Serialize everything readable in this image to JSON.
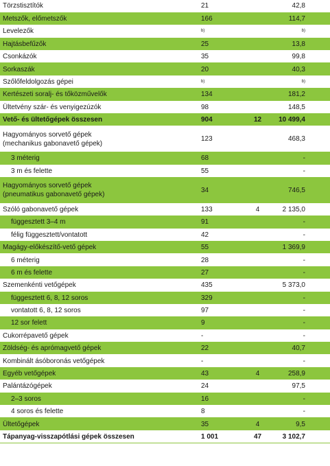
{
  "rows": [
    {
      "name": "Törzstisztítók",
      "count": "21",
      "mid": "",
      "value": "42,8",
      "style": "w"
    },
    {
      "name": "Metszők, előmetszők",
      "count": "166",
      "mid": "",
      "value": "114,7",
      "style": "g"
    },
    {
      "name": "Levelezők",
      "count": "b)",
      "mid": "",
      "value": "b)",
      "style": "w",
      "sup": true
    },
    {
      "name": "Hajtásbefűzők",
      "count": "25",
      "mid": "",
      "value": "13,8",
      "style": "g"
    },
    {
      "name": "Csonkázók",
      "count": "35",
      "mid": "",
      "value": "99,8",
      "style": "w"
    },
    {
      "name": "Sorkaszák",
      "count": "20",
      "mid": "",
      "value": "40,3",
      "style": "g"
    },
    {
      "name": "Szőlőfeldolgozás gépei",
      "count": "b)",
      "mid": "",
      "value": "b)",
      "style": "w",
      "sup": true
    },
    {
      "name": "Kertészeti soralj- és tőközművelők",
      "count": "134",
      "mid": "",
      "value": "181,2",
      "style": "g"
    },
    {
      "name": "Ültetvény szár- és venyigezúzók",
      "count": "98",
      "mid": "",
      "value": "148,5",
      "style": "w"
    },
    {
      "name": "Vető- és ültetőgépek összesen",
      "count": "904",
      "mid": "12",
      "value": "10 499,4",
      "style": "g",
      "bold": true
    },
    {
      "name": "Hagyományos sorvető gépek\n(mechanikus gabonavető gépek)",
      "count": "123",
      "mid": "",
      "value": "468,3",
      "style": "w",
      "tall": true
    },
    {
      "name": "3 méterig",
      "count": "68",
      "mid": "",
      "value": "-",
      "style": "g",
      "indent": true
    },
    {
      "name": "3 m és felette",
      "count": "55",
      "mid": "",
      "value": "-",
      "style": "w",
      "indent": true
    },
    {
      "name": "Hagyományos sorvető gépek\n(pneumatikus gabonavető gépek)",
      "count": "34",
      "mid": "",
      "value": "746,5",
      "style": "g",
      "tall": true
    },
    {
      "name": "Szóló gabonavető gépek",
      "count": "133",
      "mid": "4",
      "value": "2 135,0",
      "style": "w"
    },
    {
      "name": "függesztett 3–4 m",
      "count": "91",
      "mid": "",
      "value": "-",
      "style": "g",
      "indent": true
    },
    {
      "name": "félig függesztett/vontatott",
      "count": "42",
      "mid": "",
      "value": "-",
      "style": "w",
      "indent": true
    },
    {
      "name": "Magágy-előkészítő-vető gépek",
      "count": "55",
      "mid": "",
      "value": "1 369,9",
      "style": "g"
    },
    {
      "name": "6 méterig",
      "count": "28",
      "mid": "",
      "value": "-",
      "style": "w",
      "indent": true
    },
    {
      "name": "6 m és felette",
      "count": "27",
      "mid": "",
      "value": "-",
      "style": "g",
      "indent": true
    },
    {
      "name": "Szemenkénti vetőgépek",
      "count": "435",
      "mid": "",
      "value": "5 373,0",
      "style": "w"
    },
    {
      "name": "függesztett 6, 8, 12 soros",
      "count": "329",
      "mid": "",
      "value": "-",
      "style": "g",
      "indent": true
    },
    {
      "name": "vontatott 6, 8, 12 soros",
      "count": "97",
      "mid": "",
      "value": "-",
      "style": "w",
      "indent": true
    },
    {
      "name": "12 sor felett",
      "count": "9",
      "mid": "",
      "value": "-",
      "style": "g",
      "indent": true
    },
    {
      "name": "Cukorrépavető gépek",
      "count": "-",
      "mid": "",
      "value": "-",
      "style": "w"
    },
    {
      "name": "Zöldség- és apró​magvető gépek",
      "count": "22",
      "mid": "",
      "value": "40,7",
      "style": "g"
    },
    {
      "name": "Kombinált ásóboronás vetőgépek",
      "count": "-",
      "mid": "",
      "value": "-",
      "style": "w"
    },
    {
      "name": "Egyéb vetőgépek",
      "count": "43",
      "mid": "4",
      "value": "258,9",
      "style": "g"
    },
    {
      "name": "Palántázógépek",
      "count": "24",
      "mid": "",
      "value": "97,5",
      "style": "w"
    },
    {
      "name": "2–3 soros",
      "count": "16",
      "mid": "",
      "value": "-",
      "style": "g",
      "indent": true
    },
    {
      "name": "4 soros és felette",
      "count": "8",
      "mid": "",
      "value": "-",
      "style": "w",
      "indent": true
    },
    {
      "name": "Ültetőgépek",
      "count": "35",
      "mid": "4",
      "value": "9,5",
      "style": "g"
    },
    {
      "name": "Tápanyag-visszapótlási gépek összesen",
      "count": "1 001",
      "mid": "47",
      "value": "3 102,7",
      "style": "w",
      "bold": true
    }
  ]
}
